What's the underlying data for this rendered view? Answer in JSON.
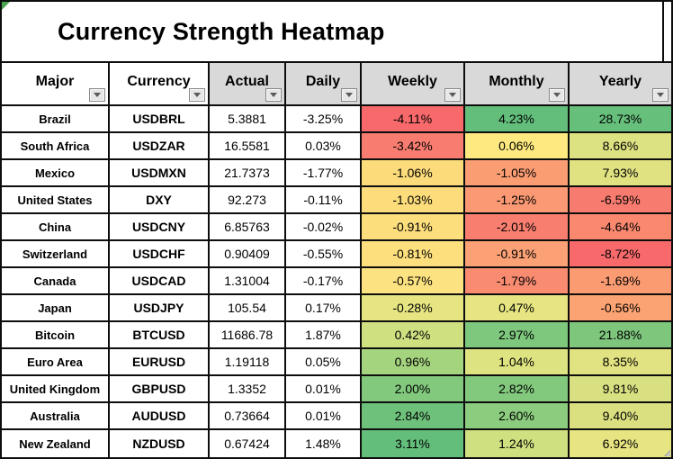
{
  "title": "Currency Strength Heatmap",
  "colors": {
    "header_fill": "#d9d9d9",
    "plain_fill": "#ffffff",
    "grid_line": "#0d0d0d",
    "corner_flag": "#4aa34e",
    "scale_min_red": "#f8696b",
    "scale_mid_yellow": "#ffeb84",
    "scale_max_green": "#63be7b"
  },
  "icons": {
    "filter_dropdown": "chevron-down-icon",
    "corner_flag": "sheet-flag-icon",
    "resize_handle": "table-resize-handle"
  },
  "table": {
    "columns": [
      {
        "key": "major",
        "label": "Major",
        "bg": "#ffffff"
      },
      {
        "key": "currency",
        "label": "Currency",
        "bg": "#ffffff"
      },
      {
        "key": "actual",
        "label": "Actual",
        "bg": "#d9d9d9"
      },
      {
        "key": "daily",
        "label": "Daily",
        "bg": "#d9d9d9"
      },
      {
        "key": "weekly",
        "label": "Weekly",
        "bg": "#d9d9d9"
      },
      {
        "key": "monthly",
        "label": "Monthly",
        "bg": "#d9d9d9"
      },
      {
        "key": "yearly",
        "label": "Yearly",
        "bg": "#d9d9d9"
      }
    ],
    "rows": [
      {
        "major": "Brazil",
        "currency": "USDBRL",
        "actual": "5.3881",
        "daily": "-3.25%",
        "weekly": {
          "t": "-4.11%",
          "bg": "#f8696b"
        },
        "monthly": {
          "t": "4.23%",
          "bg": "#63be7b"
        },
        "yearly": {
          "t": "28.73%",
          "bg": "#66bf7b"
        }
      },
      {
        "major": "South Africa",
        "currency": "USDZAR",
        "actual": "16.5581",
        "daily": "0.03%",
        "weekly": {
          "t": "-3.42%",
          "bg": "#f87d70"
        },
        "monthly": {
          "t": "0.06%",
          "bg": "#fde97f"
        },
        "yearly": {
          "t": "8.66%",
          "bg": "#dce181"
        }
      },
      {
        "major": "Mexico",
        "currency": "USDMXN",
        "actual": "21.7373",
        "daily": "-1.77%",
        "weekly": {
          "t": "-1.06%",
          "bg": "#fcdb7a"
        },
        "monthly": {
          "t": "-1.05%",
          "bg": "#fa9d73"
        },
        "yearly": {
          "t": "7.93%",
          "bg": "#e0e281"
        }
      },
      {
        "major": "United States",
        "currency": "DXY",
        "actual": "92.273",
        "daily": "-0.11%",
        "weekly": {
          "t": "-1.03%",
          "bg": "#fcdc7b"
        },
        "monthly": {
          "t": "-1.25%",
          "bg": "#fa9973"
        },
        "yearly": {
          "t": "-6.59%",
          "bg": "#f87b6f"
        }
      },
      {
        "major": "China",
        "currency": "USDCNY",
        "actual": "6.85763",
        "daily": "-0.02%",
        "weekly": {
          "t": "-0.91%",
          "bg": "#fcde7c"
        },
        "monthly": {
          "t": "-2.01%",
          "bg": "#f87f70"
        },
        "yearly": {
          "t": "-4.64%",
          "bg": "#f9886f"
        }
      },
      {
        "major": "Switzerland",
        "currency": "USDCHF",
        "actual": "0.90409",
        "daily": "-0.55%",
        "weekly": {
          "t": "-0.81%",
          "bg": "#fddf7d"
        },
        "monthly": {
          "t": "-0.91%",
          "bg": "#fba175"
        },
        "yearly": {
          "t": "-8.72%",
          "bg": "#f8696b"
        }
      },
      {
        "major": "Canada",
        "currency": "USDCAD",
        "actual": "1.31004",
        "daily": "-0.17%",
        "weekly": {
          "t": "-0.57%",
          "bg": "#fde282"
        },
        "monthly": {
          "t": "-1.79%",
          "bg": "#f98b71"
        },
        "yearly": {
          "t": "-1.69%",
          "bg": "#fa9b72"
        }
      },
      {
        "major": "Japan",
        "currency": "USDJPY",
        "actual": "105.54",
        "daily": "0.17%",
        "weekly": {
          "t": "-0.28%",
          "bg": "#e6e582"
        },
        "monthly": {
          "t": "0.47%",
          "bg": "#e6e582"
        },
        "yearly": {
          "t": "-0.56%",
          "bg": "#fba372"
        }
      },
      {
        "major": "Bitcoin",
        "currency": "BTCUSD",
        "actual": "11686.78",
        "daily": "1.87%",
        "weekly": {
          "t": "0.42%",
          "bg": "#cfe081"
        },
        "monthly": {
          "t": "2.97%",
          "bg": "#7ec87d"
        },
        "yearly": {
          "t": "21.88%",
          "bg": "#7ec67c"
        }
      },
      {
        "major": "Euro Area",
        "currency": "EURUSD",
        "actual": "1.19118",
        "daily": "0.05%",
        "weekly": {
          "t": "0.96%",
          "bg": "#a5d47f"
        },
        "monthly": {
          "t": "1.04%",
          "bg": "#dde381"
        },
        "yearly": {
          "t": "8.35%",
          "bg": "#e1e281"
        }
      },
      {
        "major": "United Kingdom",
        "currency": "GBPUSD",
        "actual": "1.3352",
        "daily": "0.01%",
        "weekly": {
          "t": "2.00%",
          "bg": "#82c97d"
        },
        "monthly": {
          "t": "2.82%",
          "bg": "#82c97d"
        },
        "yearly": {
          "t": "9.81%",
          "bg": "#d9e081"
        }
      },
      {
        "major": "Australia",
        "currency": "AUDUSD",
        "actual": "0.73664",
        "daily": "0.01%",
        "weekly": {
          "t": "2.84%",
          "bg": "#6ec17b"
        },
        "monthly": {
          "t": "2.60%",
          "bg": "#8ccc7e"
        },
        "yearly": {
          "t": "9.40%",
          "bg": "#dae080"
        }
      },
      {
        "major": "New Zealand",
        "currency": "NZDUSD",
        "actual": "0.67424",
        "daily": "1.48%",
        "weekly": {
          "t": "3.11%",
          "bg": "#63be7b"
        },
        "monthly": {
          "t": "1.24%",
          "bg": "#cfe080"
        },
        "yearly": {
          "t": "6.92%",
          "bg": "#e7e482"
        }
      }
    ]
  }
}
